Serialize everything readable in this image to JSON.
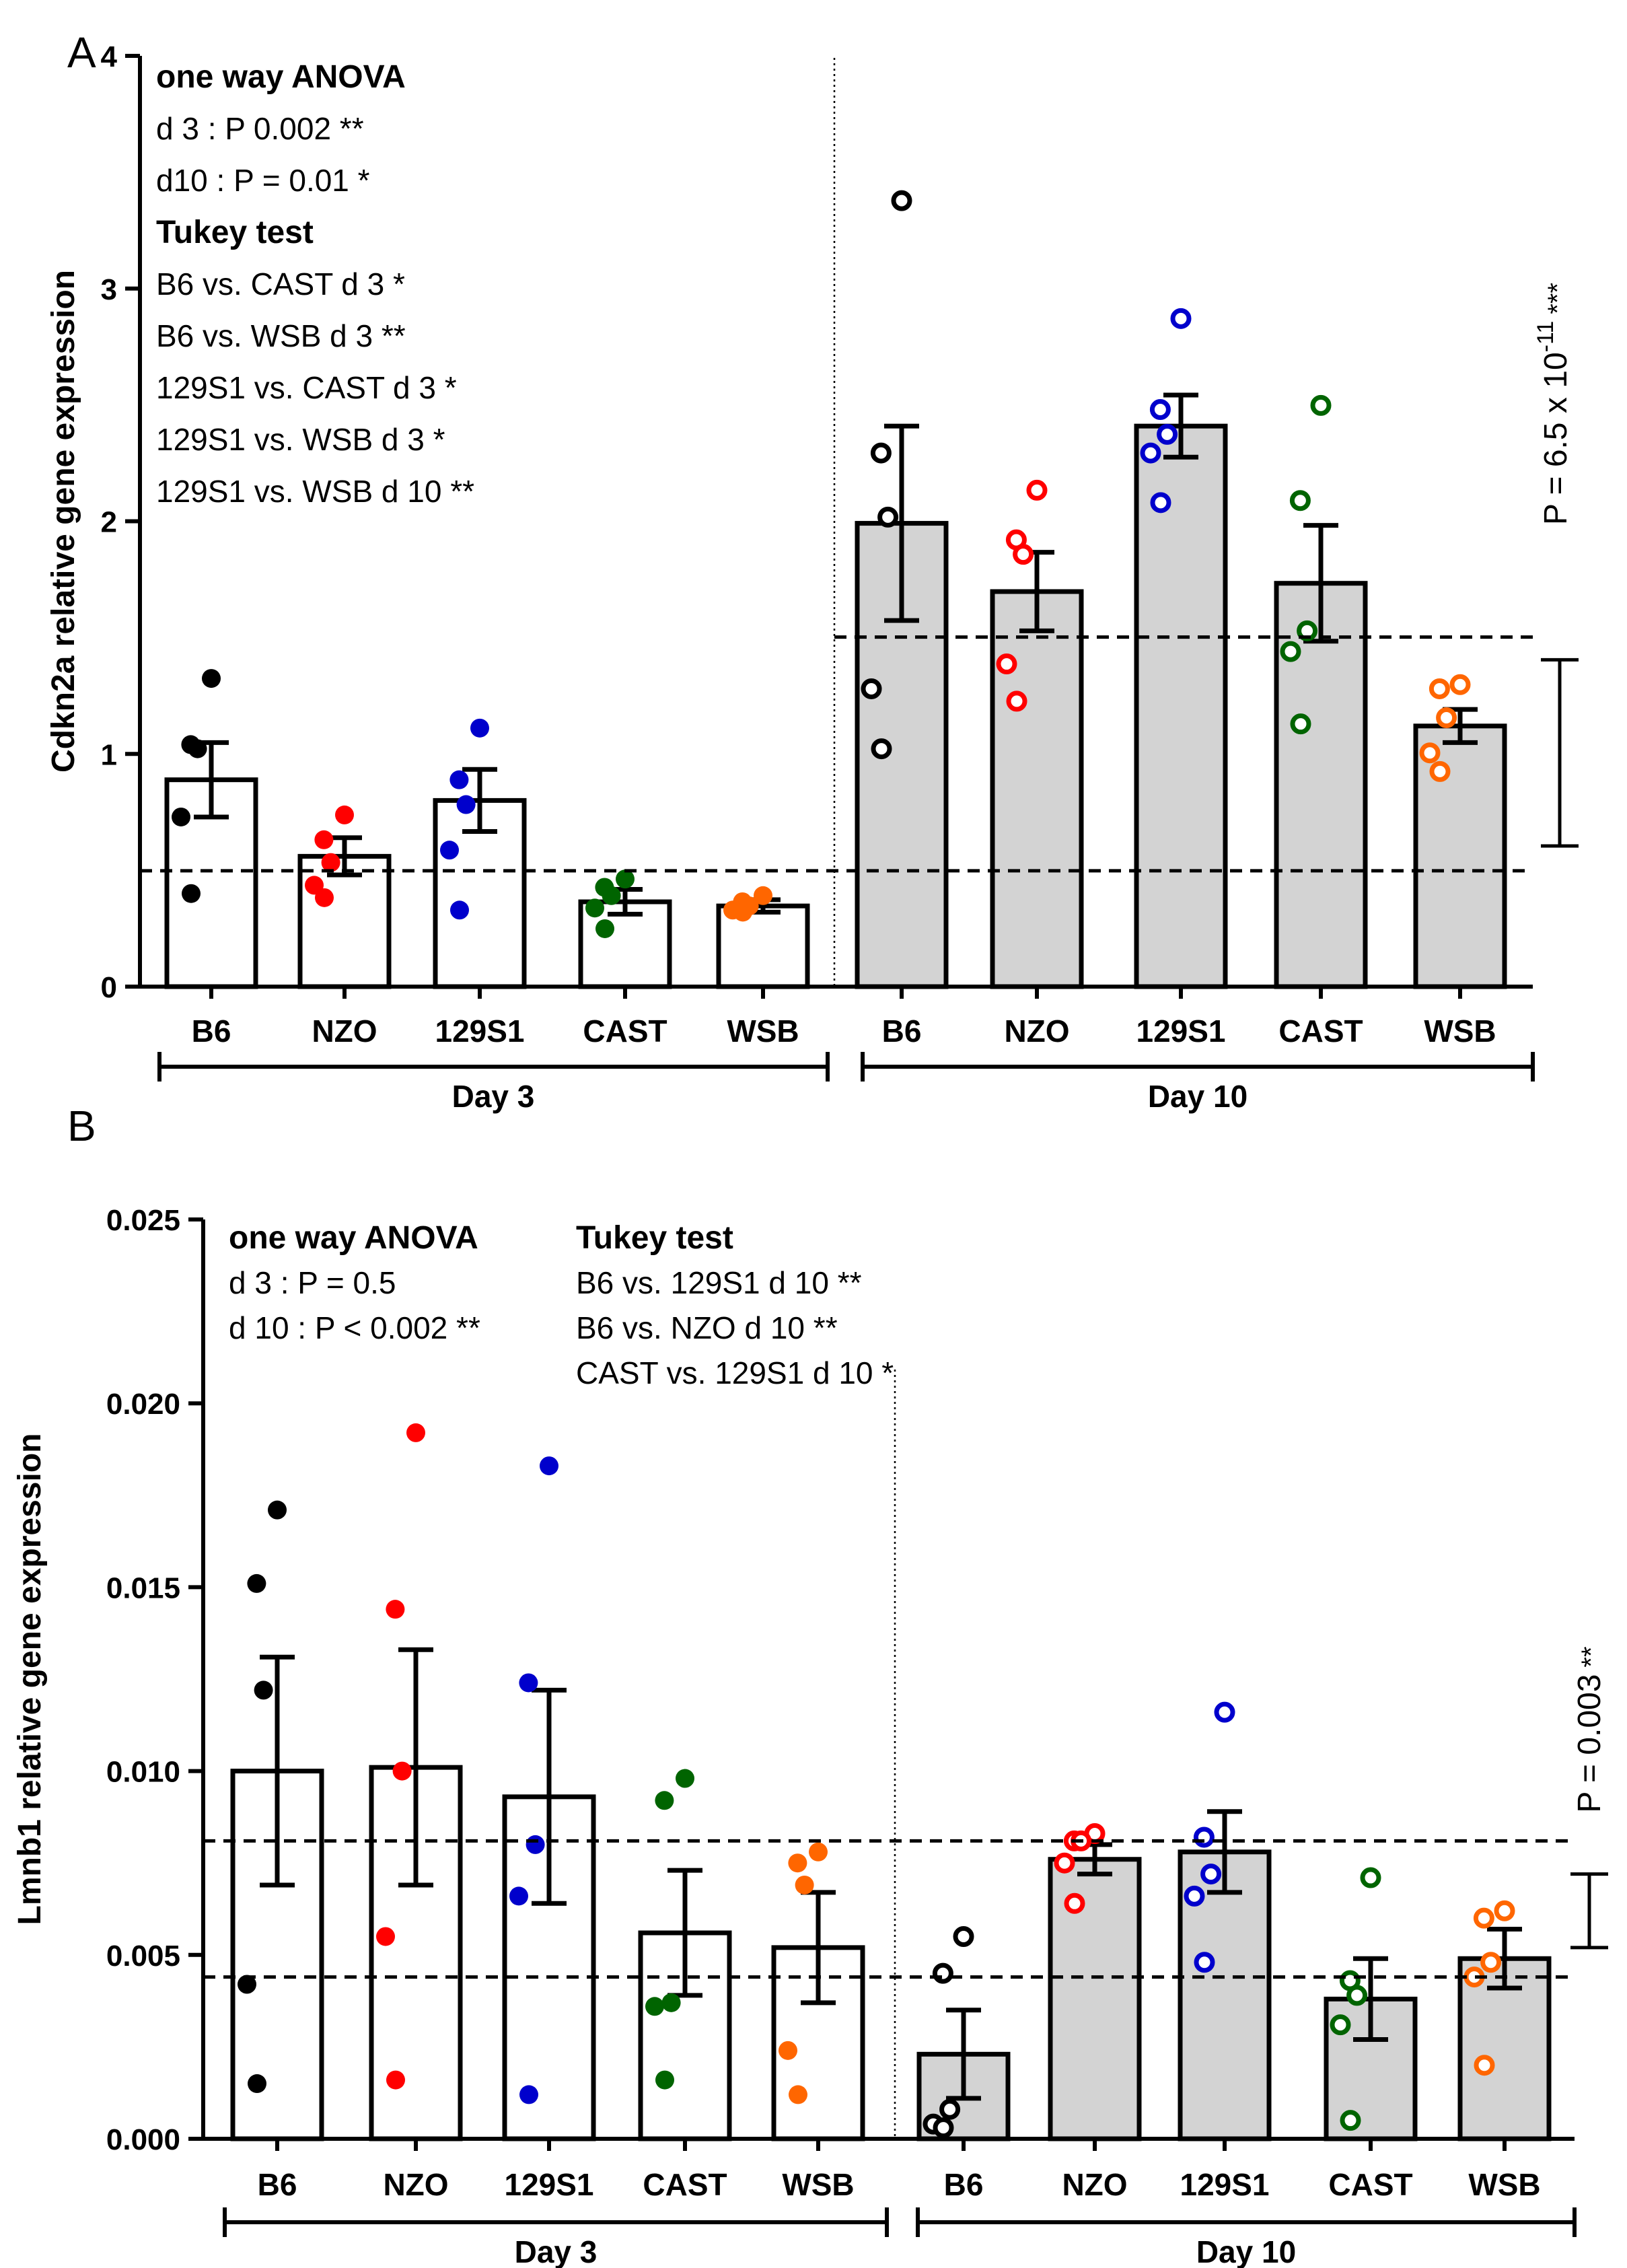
{
  "colors": {
    "B6": "#000000",
    "NZO": "#ff0000",
    "129S1": "#0000cc",
    "CAST": "#006400",
    "WSB": "#ff6600"
  },
  "chart_data": [
    {
      "panel": "A",
      "type": "bar",
      "ylabel": "Cdkn2a relative gene expression",
      "ylim": [
        0,
        4.5
      ],
      "yticks": [
        "0",
        "1",
        "2",
        "3",
        "4"
      ],
      "groups": [
        "Day 3",
        "Day 10"
      ],
      "categories": [
        "B6",
        "NZO",
        "129S1",
        "CAST",
        "WSB"
      ],
      "series": [
        {
          "name": "Day 3",
          "fill": "open",
          "values": [
            1.0,
            0.63,
            0.9,
            0.41,
            0.39
          ],
          "sem": [
            0.18,
            0.09,
            0.15,
            0.06,
            0.03
          ],
          "points": [
            [
              1.49,
              1.17,
              1.15,
              0.82,
              0.45
            ],
            [
              0.83,
              0.71,
              0.6,
              0.49,
              0.43
            ],
            [
              1.25,
              1.0,
              0.88,
              0.66,
              0.37
            ],
            [
              0.52,
              0.48,
              0.44,
              0.38,
              0.28
            ],
            [
              0.44,
              0.41,
              0.39,
              0.37,
              0.36
            ]
          ]
        },
        {
          "name": "Day 10",
          "fill": "gray",
          "values": [
            2.24,
            1.91,
            2.71,
            1.95,
            1.26
          ],
          "sem": [
            0.47,
            0.19,
            0.15,
            0.28,
            0.08
          ],
          "points": [
            [
              3.8,
              2.58,
              2.27,
              1.44,
              1.15
            ],
            [
              2.4,
              2.16,
              2.09,
              1.56,
              1.38
            ],
            [
              3.23,
              2.79,
              2.67,
              2.58,
              2.34
            ],
            [
              2.81,
              2.35,
              1.72,
              1.62,
              1.27
            ],
            [
              1.46,
              1.44,
              1.3,
              1.13,
              1.04
            ]
          ]
        }
      ],
      "reference_lines": [
        0.56,
        1.69
      ],
      "bracket_text": "P = 6.5 x 10",
      "bracket_exp": "-11",
      "bracket_stars": "***",
      "stats": {
        "anova_title": "one way ANOVA",
        "anova_lines": [
          "d 3 : P 0.002 **",
          "d10 : P = 0.01 *"
        ],
        "tukey_title": "Tukey test",
        "tukey_lines": [
          "B6 vs. CAST d 3 *",
          "B6 vs. WSB d 3 **",
          "129S1 vs. CAST d 3 *",
          "129S1 vs. WSB d 3 *",
          "129S1 vs. WSB d 10 **"
        ]
      }
    },
    {
      "panel": "B",
      "type": "bar",
      "ylabel": "Lmnb1 relative gene expression",
      "ylim": [
        0,
        0.025
      ],
      "yticks": [
        "0.000",
        "0.005",
        "0.010",
        "0.015",
        "0.020",
        "0.025"
      ],
      "groups": [
        "Day 3",
        "Day 10"
      ],
      "categories": [
        "B6",
        "NZO",
        "129S1",
        "CAST",
        "WSB"
      ],
      "series": [
        {
          "name": "Day 3",
          "fill": "open",
          "values": [
            0.01,
            0.0101,
            0.0093,
            0.0056,
            0.0052
          ],
          "sem": [
            0.0031,
            0.0032,
            0.0029,
            0.0017,
            0.0015
          ],
          "points": [
            [
              0.0171,
              0.0151,
              0.0122,
              0.0042,
              0.0015
            ],
            [
              0.0192,
              0.0144,
              0.01,
              0.0055,
              0.0016
            ],
            [
              0.0183,
              0.0124,
              0.008,
              0.0066,
              0.0012
            ],
            [
              0.0098,
              0.0092,
              0.0037,
              0.0036,
              0.0016
            ],
            [
              0.0078,
              0.0075,
              0.0069,
              0.0024,
              0.0012
            ]
          ]
        },
        {
          "name": "Day 10",
          "fill": "gray",
          "values": [
            0.0023,
            0.0076,
            0.0078,
            0.0038,
            0.0049
          ],
          "sem": [
            0.0012,
            0.0004,
            0.0011,
            0.0011,
            0.0008
          ],
          "points": [
            [
              0.0055,
              0.0045,
              0.0008,
              0.0004,
              0.0003
            ],
            [
              0.0083,
              0.0081,
              0.0081,
              0.0075,
              0.0064
            ],
            [
              0.0116,
              0.0082,
              0.0072,
              0.0066,
              0.0048
            ],
            [
              0.0071,
              0.0043,
              0.0039,
              0.0031,
              0.0005
            ],
            [
              0.0062,
              0.006,
              0.0048,
              0.0044,
              0.002
            ]
          ]
        }
      ],
      "reference_lines": [
        0.0044,
        0.0081
      ],
      "bracket_text": "P = 0.003",
      "bracket_exp": "",
      "bracket_stars": "**",
      "stats": {
        "anova_title": "one way ANOVA",
        "anova_lines": [
          "d 3 : P = 0.5",
          "d 10 : P < 0.002 **"
        ],
        "tukey_title": "Tukey test",
        "tukey_lines": [
          "B6 vs. 129S1 d 10 **",
          "B6 vs. NZO d 10 **",
          "CAST vs. 129S1 d 10 *"
        ]
      }
    }
  ]
}
